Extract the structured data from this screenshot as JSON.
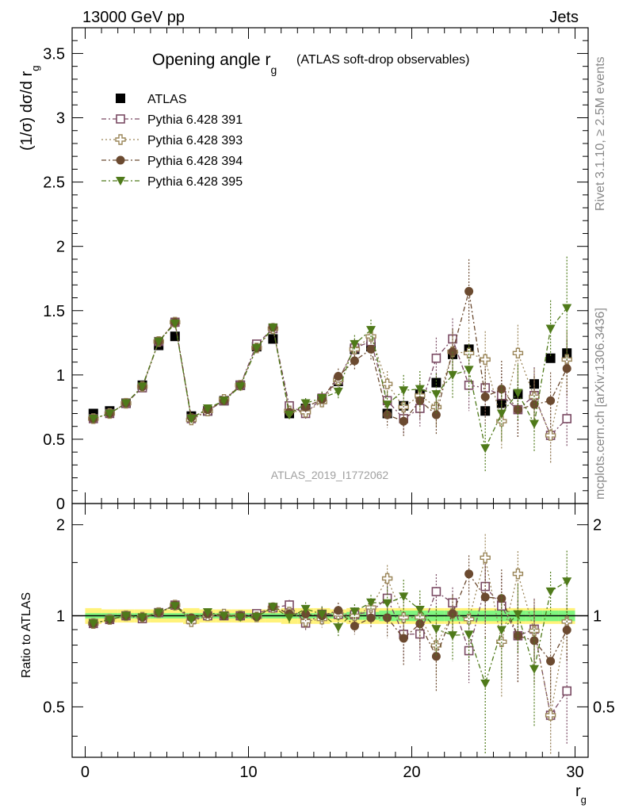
{
  "header": {
    "left": "13000 GeV pp",
    "right": "Jets"
  },
  "title": {
    "main": "Opening angle r",
    "sub": "g",
    "paren": "(ATLAS soft-drop observables)"
  },
  "watermark": "ATLAS_2019_I1772062",
  "side_labels": {
    "rivet": "Rivet 3.1.10, ≥ 2.5M events",
    "mcplots": "mcplots.cern.ch [arXiv:1306.3436]"
  },
  "axes": {
    "ylabel_top": "(1/σ) dσ/d r",
    "ylabel_top_sub": "g",
    "ylabel_bottom": "Ratio to ATLAS",
    "xlabel": "r",
    "xlabel_sub": "g"
  },
  "colors": {
    "atlas": "#000000",
    "p391": "#7a4a63",
    "p393": "#9a8558",
    "p394": "#6b4a30",
    "p395": "#4f7a1a",
    "band_inner": "#7ff57f",
    "band_outer": "#fff27a"
  },
  "chart_data": {
    "type": "scatter",
    "x": [
      0.5,
      1.5,
      2.5,
      3.5,
      4.5,
      5.5,
      6.5,
      7.5,
      8.5,
      9.5,
      10.5,
      11.5,
      12.5,
      13.5,
      14.5,
      15.5,
      16.5,
      17.5,
      18.5,
      19.5,
      20.5,
      21.5,
      22.5,
      23.5,
      24.5,
      25.5,
      26.5,
      27.5,
      28.5,
      29.5
    ],
    "xlim": [
      -0.8,
      30.8
    ],
    "ylim_top": [
      0,
      3.7
    ],
    "ylim_ratio": [
      0.3406,
      2.35
    ],
    "x_ticks": [
      0,
      10,
      20,
      30
    ],
    "x_tick_labels": [
      "0",
      "10",
      "20",
      "30"
    ],
    "y_ticks_top": [
      0,
      0.5,
      1,
      1.5,
      2,
      2.5,
      3,
      3.5
    ],
    "y_tick_labels_top": [
      "0",
      "0.5",
      "1",
      "1.5",
      "2",
      "2.5",
      "3",
      "3.5"
    ],
    "y_ticks_ratio": [
      0.5,
      1,
      2
    ],
    "y_tick_labels_ratio": [
      "0.5",
      "1",
      "2"
    ],
    "series": [
      {
        "name": "ATLAS",
        "key": "atlas",
        "marker": "square-filled",
        "values": [
          0.7,
          0.72,
          0.78,
          0.92,
          1.23,
          1.3,
          0.68,
          0.72,
          0.8,
          0.92,
          1.22,
          1.28,
          0.7,
          0.74,
          0.81,
          0.95,
          1.2,
          1.22,
          0.7,
          0.76,
          0.85,
          0.94,
          1.16,
          1.2,
          0.72,
          0.78,
          0.85,
          0.93,
          1.13,
          1.17
        ]
      },
      {
        "name": "Pythia 6.428 391",
        "key": "p391",
        "marker": "square-open",
        "values": [
          0.66,
          0.7,
          0.78,
          0.9,
          1.26,
          1.41,
          0.66,
          0.72,
          0.8,
          0.92,
          1.24,
          1.36,
          0.76,
          0.7,
          0.82,
          0.96,
          1.21,
          1.26,
          0.8,
          0.66,
          0.74,
          1.13,
          1.28,
          0.92,
          0.9,
          0.84,
          0.73,
          0.84,
          0.53,
          0.66
        ],
        "errors": [
          0.01,
          0.01,
          0.01,
          0.01,
          0.01,
          0.01,
          0.01,
          0.01,
          0.01,
          0.01,
          0.02,
          0.03,
          0.03,
          0.04,
          0.05,
          0.06,
          0.07,
          0.08,
          0.1,
          0.12,
          0.14,
          0.16,
          0.16,
          0.2,
          0.22,
          0.22,
          0.22,
          0.22,
          0.22,
          0.22
        ]
      },
      {
        "name": "Pythia 6.428 393",
        "key": "p393",
        "marker": "cross-open",
        "values": [
          0.66,
          0.7,
          0.78,
          0.91,
          1.26,
          1.41,
          0.65,
          0.72,
          0.81,
          0.92,
          1.21,
          1.36,
          0.72,
          0.71,
          0.79,
          0.96,
          1.2,
          1.3,
          0.93,
          0.75,
          0.84,
          0.75,
          1.18,
          1.17,
          1.12,
          0.64,
          1.17,
          0.83,
          0.53,
          1.12
        ],
        "errors": [
          0.01,
          0.01,
          0.01,
          0.01,
          0.01,
          0.01,
          0.01,
          0.01,
          0.01,
          0.01,
          0.02,
          0.03,
          0.03,
          0.04,
          0.05,
          0.06,
          0.07,
          0.08,
          0.1,
          0.12,
          0.14,
          0.16,
          0.17,
          0.2,
          0.22,
          0.22,
          0.22,
          0.22,
          0.22,
          0.22
        ]
      },
      {
        "name": "Pythia 6.428 394",
        "key": "p394",
        "marker": "circle-filled",
        "values": [
          0.66,
          0.7,
          0.78,
          0.91,
          1.26,
          1.41,
          0.67,
          0.73,
          0.8,
          0.92,
          1.21,
          1.37,
          0.71,
          0.75,
          0.81,
          0.99,
          1.11,
          1.2,
          0.69,
          0.64,
          0.8,
          0.69,
          1.18,
          1.65,
          0.83,
          0.89,
          0.73,
          0.77,
          0.8,
          1.05
        ],
        "errors": [
          0.01,
          0.01,
          0.01,
          0.01,
          0.01,
          0.01,
          0.01,
          0.01,
          0.01,
          0.01,
          0.02,
          0.03,
          0.03,
          0.04,
          0.05,
          0.06,
          0.07,
          0.08,
          0.1,
          0.12,
          0.14,
          0.16,
          0.18,
          0.25,
          0.22,
          0.22,
          0.22,
          0.22,
          0.22,
          0.22
        ]
      },
      {
        "name": "Pythia 6.428 395",
        "key": "p395",
        "marker": "triangle-down-filled",
        "values": [
          0.66,
          0.7,
          0.78,
          0.91,
          1.26,
          1.4,
          0.66,
          0.74,
          0.8,
          0.91,
          1.21,
          1.37,
          0.69,
          0.78,
          0.82,
          0.87,
          1.24,
          1.35,
          0.77,
          0.88,
          0.89,
          0.85,
          1.0,
          1.04,
          0.43,
          0.7,
          0.86,
          0.62,
          1.36,
          1.52
        ],
        "errors": [
          0.01,
          0.01,
          0.01,
          0.01,
          0.01,
          0.01,
          0.01,
          0.01,
          0.01,
          0.01,
          0.02,
          0.03,
          0.03,
          0.04,
          0.05,
          0.06,
          0.07,
          0.08,
          0.1,
          0.12,
          0.14,
          0.16,
          0.18,
          0.2,
          0.18,
          0.22,
          0.22,
          0.22,
          0.22,
          0.4
        ]
      }
    ],
    "ratio_band_inner": [
      0.02,
      0.02,
      0.02,
      0.02,
      0.02,
      0.02,
      0.02,
      0.02,
      0.02,
      0.02,
      0.02,
      0.02,
      0.02,
      0.02,
      0.02,
      0.02,
      0.03,
      0.03,
      0.04,
      0.04,
      0.04,
      0.04,
      0.04,
      0.04,
      0.04,
      0.04,
      0.04,
      0.04,
      0.04,
      0.04
    ],
    "ratio_band_outer": [
      0.06,
      0.05,
      0.05,
      0.05,
      0.05,
      0.05,
      0.06,
      0.05,
      0.05,
      0.05,
      0.05,
      0.05,
      0.06,
      0.06,
      0.06,
      0.05,
      0.06,
      0.06,
      0.06,
      0.06,
      0.06,
      0.06,
      0.06,
      0.06,
      0.06,
      0.06,
      0.06,
      0.06,
      0.06,
      0.06
    ]
  }
}
